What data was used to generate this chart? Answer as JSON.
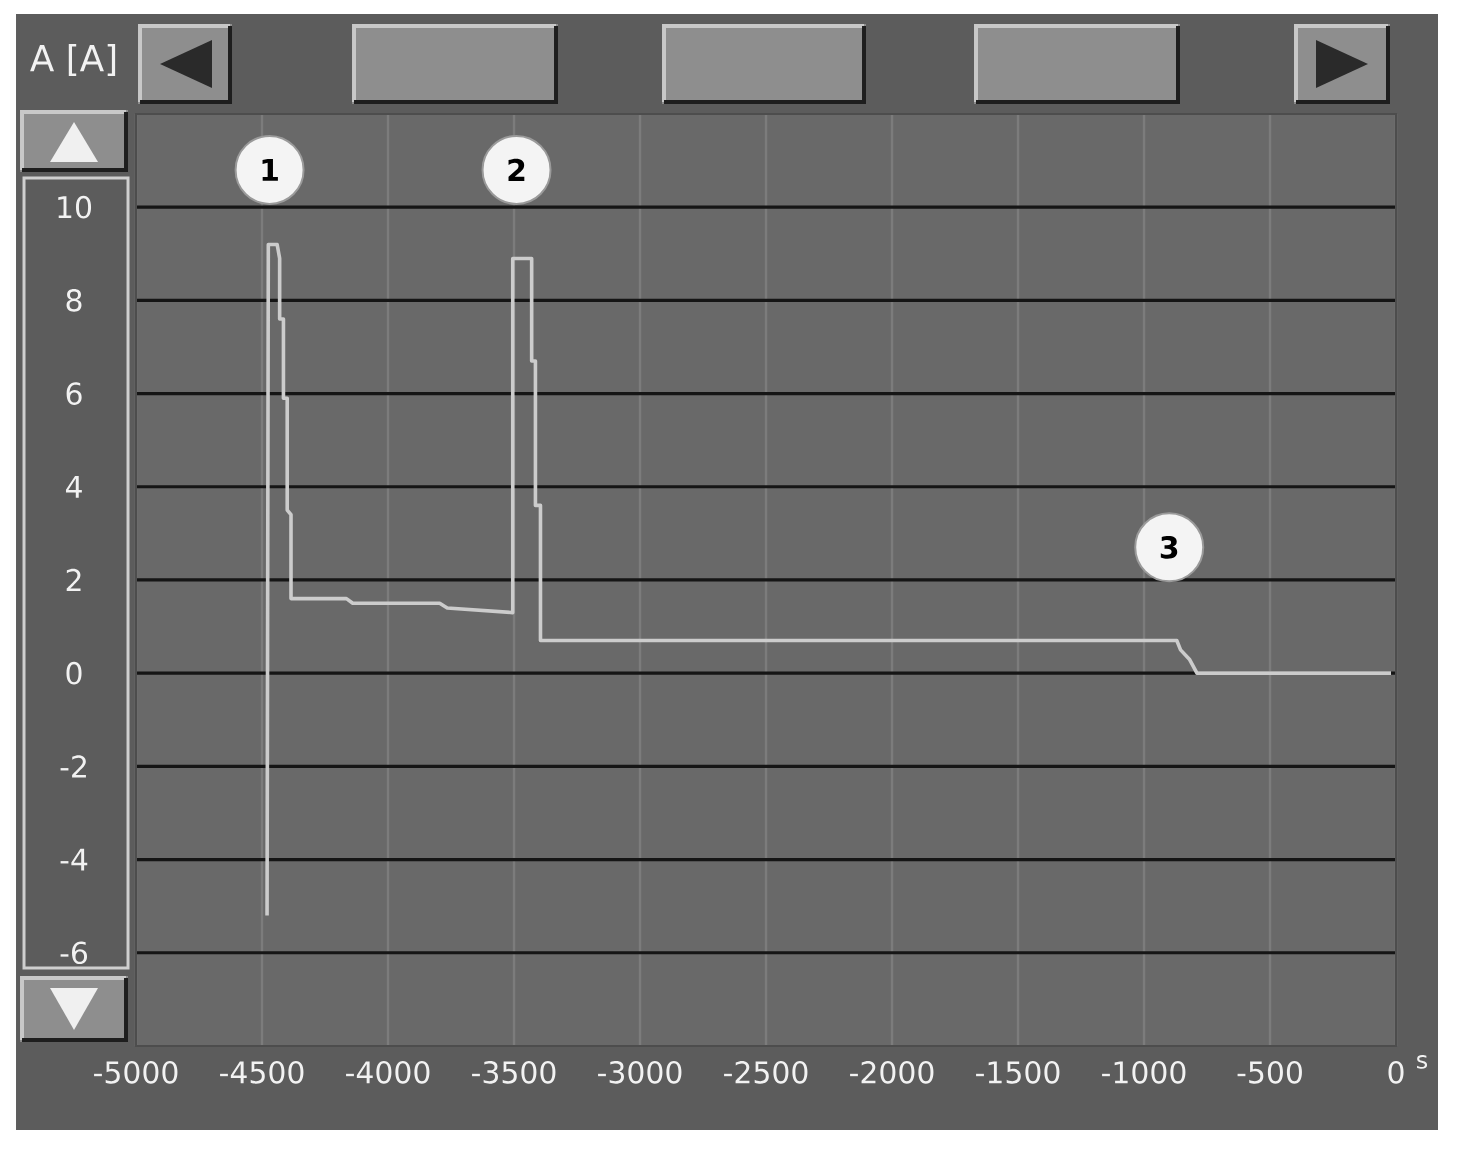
{
  "chart_data": {
    "type": "line",
    "xlabel": "s",
    "ylabel": "A [A]",
    "x": [
      -4480,
      -4475,
      -4440,
      -4430,
      -4430,
      -4415,
      -4415,
      -4400,
      -4400,
      -4385,
      -4385,
      -4165,
      -4140,
      -3795,
      -3765,
      -3505,
      -3505,
      -3430,
      -3430,
      -3415,
      -3415,
      -3395,
      -3395,
      -870,
      -855,
      -820,
      -790,
      -20
    ],
    "series": [
      {
        "color": "#cccccc",
        "values": [
          -5.2,
          9.2,
          9.2,
          8.9,
          7.6,
          7.6,
          5.9,
          5.9,
          3.5,
          3.4,
          1.6,
          1.6,
          1.5,
          1.5,
          1.4,
          1.3,
          8.9,
          8.9,
          6.7,
          6.7,
          3.6,
          3.6,
          0.7,
          0.7,
          0.5,
          0.3,
          0,
          0
        ]
      }
    ],
    "xlim": [
      -5000,
      0
    ],
    "xticks": [
      -5000,
      -4500,
      -4000,
      -3500,
      -3000,
      -2500,
      -2000,
      -1500,
      -1000,
      -500,
      0
    ],
    "ylim": [
      -8,
      12
    ],
    "yticks": [
      -6,
      -4,
      -2,
      0,
      2,
      4,
      6,
      8,
      10
    ],
    "grid": true,
    "annotations": [
      {
        "text": "1",
        "x": -4470,
        "y": 10.8
      },
      {
        "text": "2",
        "x": -3490,
        "y": 10.8
      },
      {
        "text": "3",
        "x": -900,
        "y": 2.7
      }
    ]
  }
}
